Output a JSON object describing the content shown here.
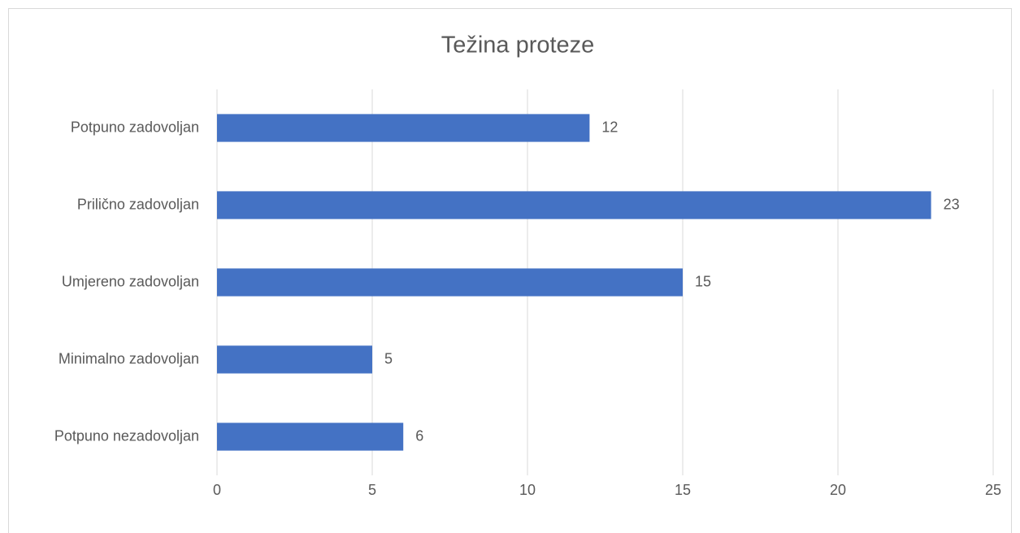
{
  "chart_data": {
    "type": "bar",
    "orientation": "horizontal",
    "title": "Težina proteze",
    "categories": [
      "Potpuno zadovoljan",
      "Prilično zadovoljan",
      "Umjereno zadovoljan",
      "Minimalno zadovoljan",
      "Potpuno nezadovoljan"
    ],
    "values": [
      12,
      23,
      15,
      5,
      6
    ],
    "color": "#4472c4",
    "xlim": [
      0,
      25
    ],
    "xticks": [
      0,
      5,
      10,
      15,
      20,
      25
    ],
    "grid": true
  }
}
